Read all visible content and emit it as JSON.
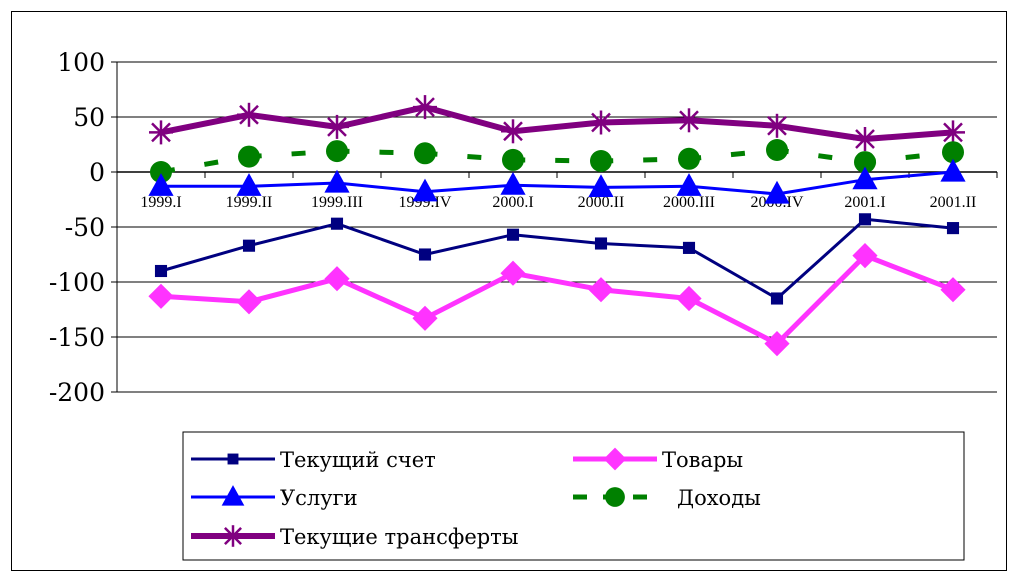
{
  "chart_data": {
    "type": "line",
    "title": "",
    "xlabel": "",
    "ylabel": "",
    "ylim": [
      -200,
      100
    ],
    "yticks": [
      "100",
      "50",
      "0",
      "-50",
      "-100",
      "-150",
      "-200"
    ],
    "categories": [
      "1999.I",
      "1999.II",
      "1999.III",
      "1999.IV",
      "2000.I",
      "2000.II",
      "2000.III",
      "2000.IV",
      "2001.I",
      "2001.II"
    ],
    "grid": "horizontal",
    "legend_position": "bottom",
    "series": [
      {
        "name": "Текущий счет",
        "color": "#000080",
        "marker": "square",
        "dash": "solid",
        "values": [
          -90,
          -67,
          -47,
          -75,
          -57,
          -65,
          -69,
          -115,
          -43,
          -51
        ]
      },
      {
        "name": "Товары",
        "color": "#FF33FF",
        "marker": "diamond",
        "dash": "solid",
        "values": [
          -113,
          -118,
          -97,
          -133,
          -92,
          -107,
          -115,
          -156,
          -76,
          -107
        ]
      },
      {
        "name": "Услуги",
        "color": "#0000FF",
        "marker": "triangle",
        "dash": "solid",
        "values": [
          -13,
          -13,
          -10,
          -18,
          -12,
          -14,
          -13,
          -20,
          -7,
          0
        ]
      },
      {
        "name": "Доходы",
        "color": "#008000",
        "marker": "circle",
        "dash": "dashed",
        "values": [
          0,
          14,
          19,
          17,
          11,
          10,
          12,
          20,
          9,
          18
        ]
      },
      {
        "name": "Текущие трансферты",
        "color": "#800080",
        "marker": "star",
        "dash": "solid",
        "values": [
          36,
          52,
          41,
          59,
          37,
          45,
          47,
          42,
          30,
          36
        ]
      }
    ]
  }
}
